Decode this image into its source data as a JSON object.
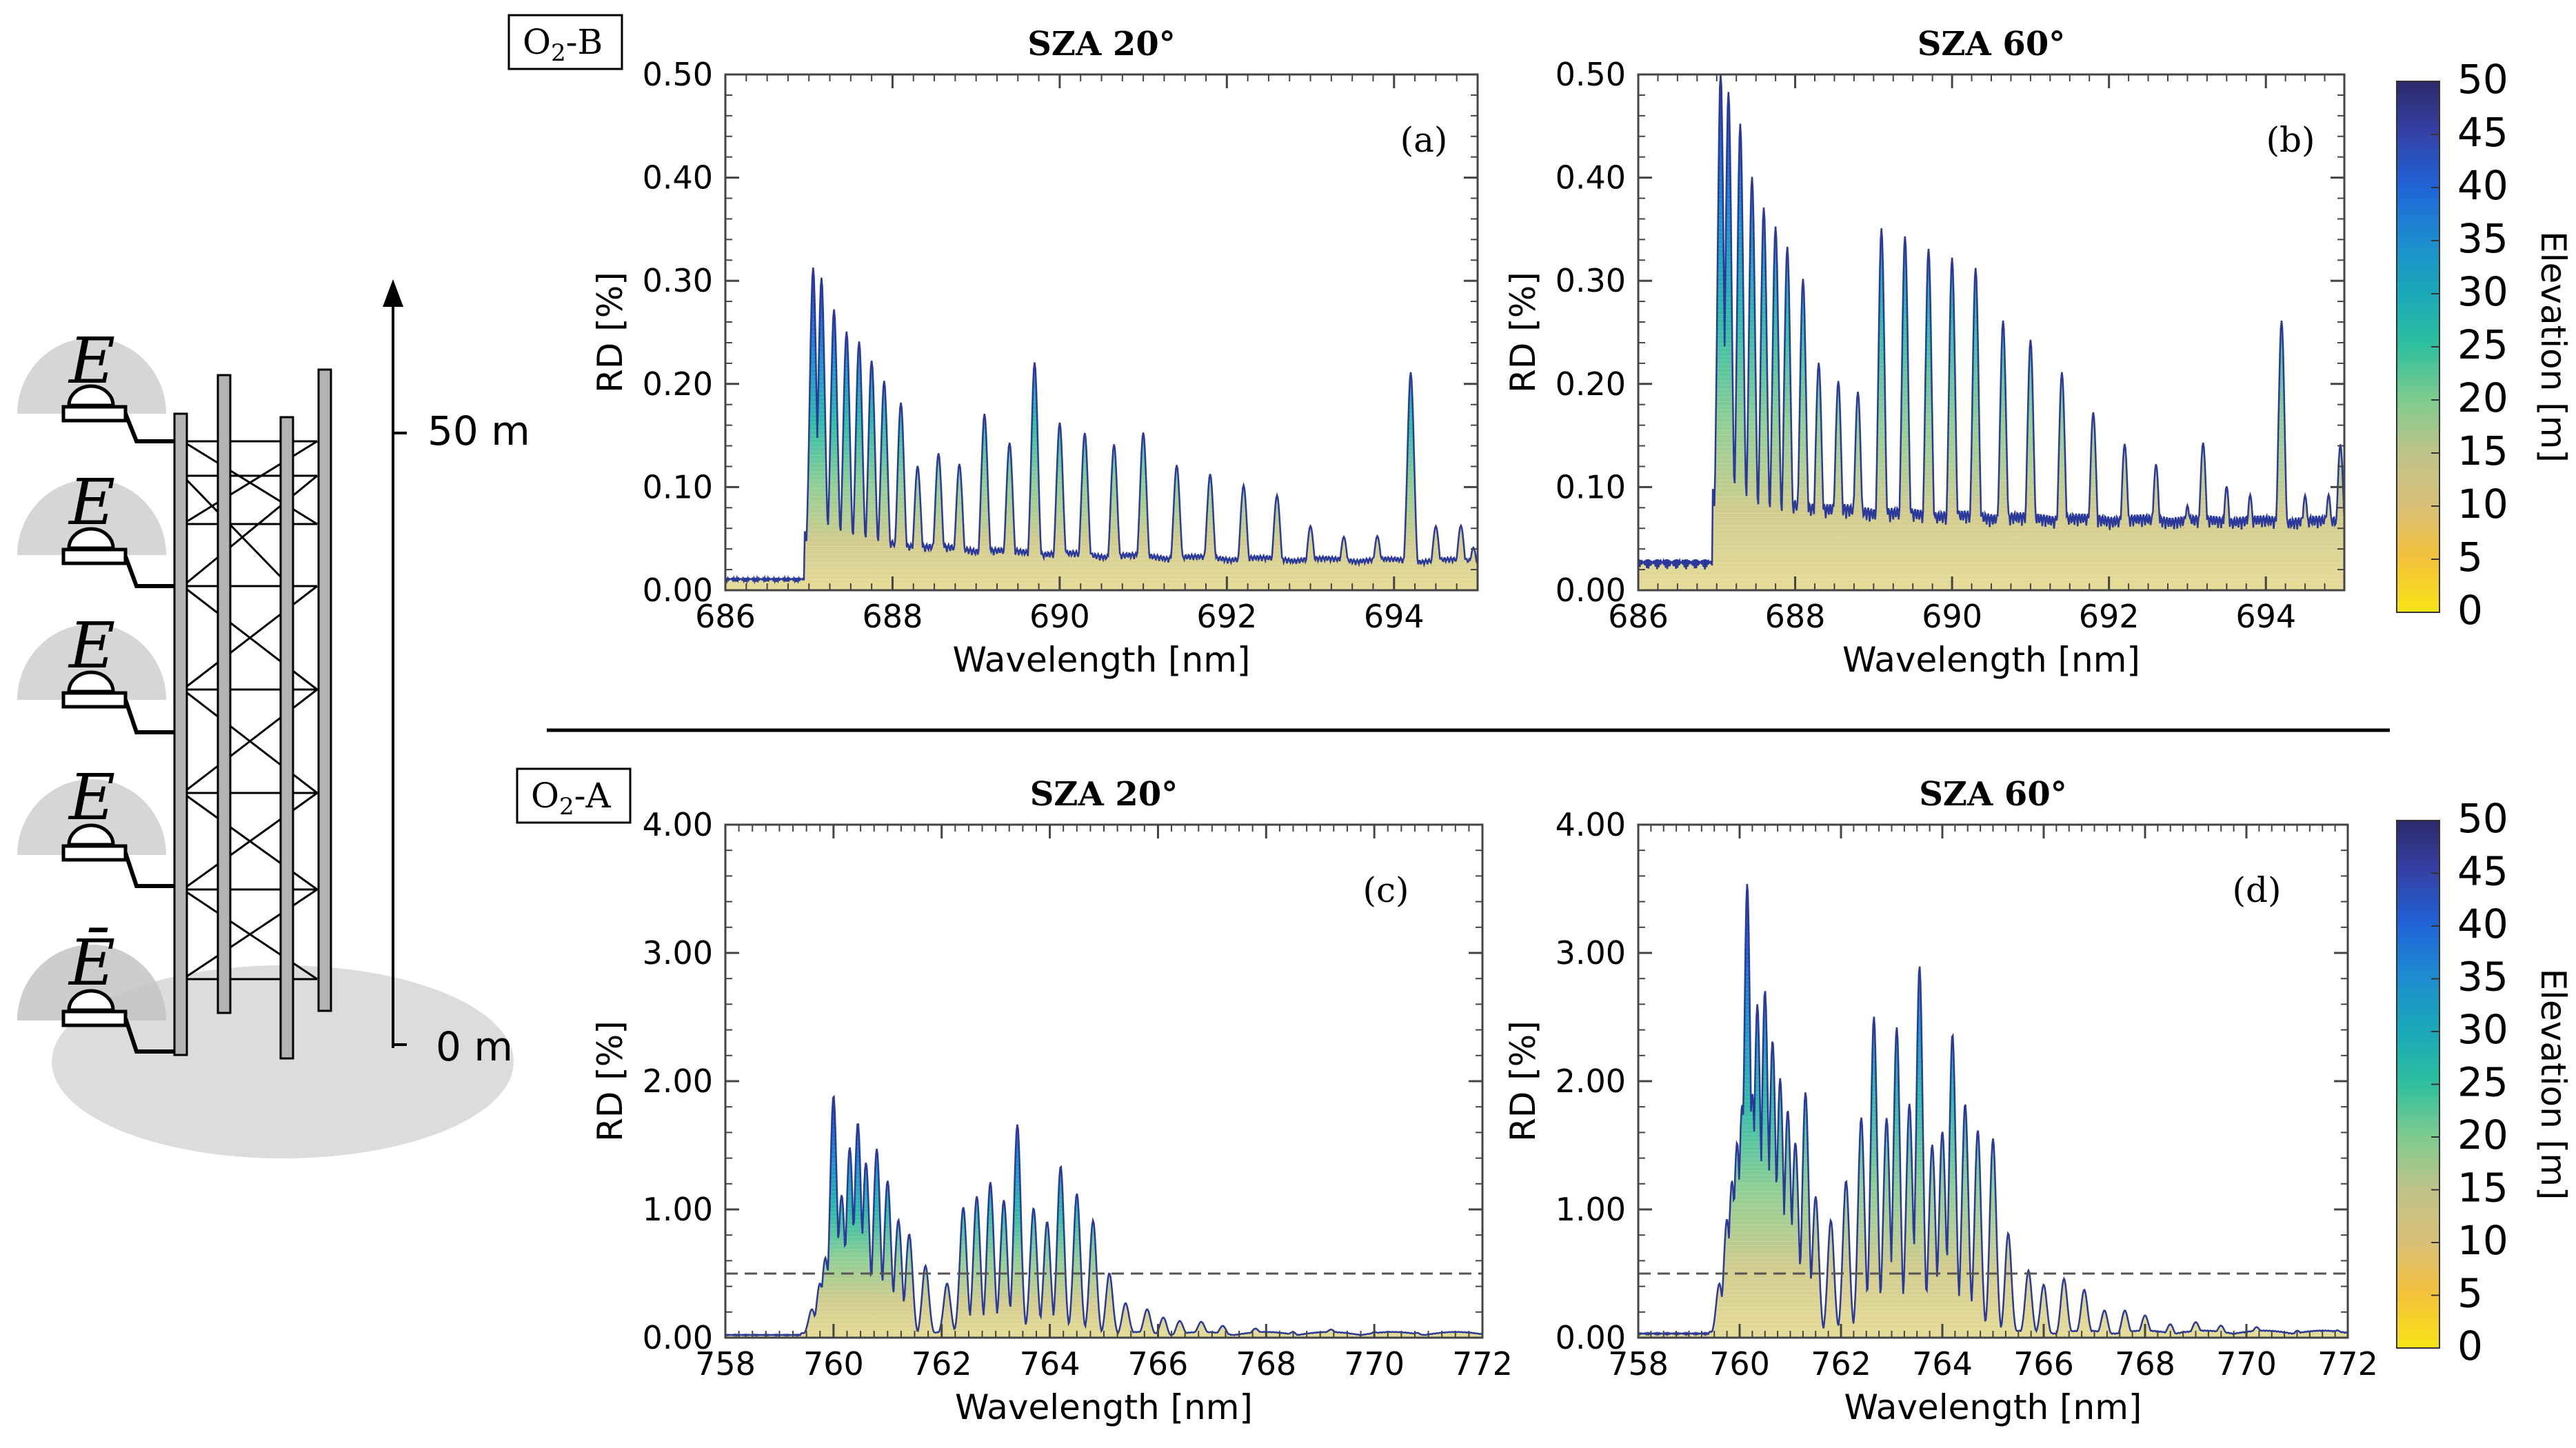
{
  "tower_diagram": {
    "instrument_symbol": "E",
    "instrument_symbol_bottom": "Ē",
    "height_top_label": "50 m",
    "height_bottom_label": "0 m"
  },
  "band_labels": {
    "top": {
      "main": "O",
      "sub": "2",
      "suffix": "-B"
    },
    "bottom": {
      "main": "O",
      "sub": "2",
      "suffix": "-A"
    }
  },
  "colors": {
    "elevation_colormap": [
      "#f7e416",
      "#f2c24a",
      "#d9c07a",
      "#b9c48c",
      "#6fcb92",
      "#1fb4a6",
      "#1c93c7",
      "#1f63d6",
      "#3a3f9f",
      "#2d2a6b"
    ],
    "dashed_line": "#555555",
    "frame": "#444444"
  },
  "chart_data": [
    {
      "id": "a",
      "type": "area",
      "band": "O2-B",
      "title": "SZA 20°",
      "panel_label": "(a)",
      "xlabel": "Wavelength [nm]",
      "ylabel": "RD [%]",
      "xlim": [
        686,
        695
      ],
      "ylim": [
        0.0,
        0.5
      ],
      "xticks": [
        "686",
        "688",
        "690",
        "692",
        "694"
      ],
      "xtick_values": [
        686,
        688,
        690,
        692,
        694
      ],
      "yticks": [
        "0.00",
        "0.10",
        "0.20",
        "0.30",
        "0.40",
        "0.50"
      ],
      "ytick_values": [
        0.0,
        0.1,
        0.2,
        0.3,
        0.4,
        0.5
      ],
      "baseline": 0.01,
      "edge": 686.95,
      "decay": 2.5,
      "peaks": [
        [
          687.05,
          0.31
        ],
        [
          687.15,
          0.3
        ],
        [
          687.3,
          0.27
        ],
        [
          687.45,
          0.25
        ],
        [
          687.6,
          0.24
        ],
        [
          687.75,
          0.22
        ],
        [
          687.9,
          0.2
        ],
        [
          688.1,
          0.18
        ],
        [
          688.3,
          0.12
        ],
        [
          688.55,
          0.13
        ],
        [
          688.8,
          0.12
        ],
        [
          689.1,
          0.17
        ],
        [
          689.4,
          0.14
        ],
        [
          689.7,
          0.22
        ],
        [
          690.0,
          0.16
        ],
        [
          690.3,
          0.15
        ],
        [
          690.65,
          0.14
        ],
        [
          691.0,
          0.15
        ],
        [
          691.4,
          0.12
        ],
        [
          691.8,
          0.11
        ],
        [
          692.2,
          0.1
        ],
        [
          692.6,
          0.09
        ],
        [
          693.0,
          0.06
        ],
        [
          693.4,
          0.05
        ],
        [
          693.8,
          0.05
        ],
        [
          694.2,
          0.21
        ],
        [
          694.5,
          0.06
        ],
        [
          694.8,
          0.06
        ],
        [
          694.95,
          0.04
        ]
      ]
    },
    {
      "id": "b",
      "type": "area",
      "band": "O2-B",
      "title": "SZA 60°",
      "panel_label": "(b)",
      "xlabel": "Wavelength [nm]",
      "ylabel": "RD [%]",
      "xlim": [
        686,
        695
      ],
      "ylim": [
        0.0,
        0.5
      ],
      "xticks": [
        "686",
        "688",
        "690",
        "692",
        "694"
      ],
      "xtick_values": [
        686,
        688,
        690,
        692,
        694
      ],
      "yticks": [
        "0.00",
        "0.10",
        "0.20",
        "0.30",
        "0.40",
        "0.50"
      ],
      "yticks_values": [
        0.0,
        0.1,
        0.2,
        0.3,
        0.4,
        0.5
      ],
      "ytick_values": [
        0.0,
        0.1,
        0.2,
        0.3,
        0.4,
        0.5
      ],
      "baseline": 0.025,
      "edge": 686.95,
      "decay": 2.0,
      "peaks": [
        [
          687.05,
          0.5
        ],
        [
          687.15,
          0.48
        ],
        [
          687.3,
          0.45
        ],
        [
          687.45,
          0.4
        ],
        [
          687.6,
          0.37
        ],
        [
          687.75,
          0.35
        ],
        [
          687.9,
          0.33
        ],
        [
          688.1,
          0.3
        ],
        [
          688.3,
          0.22
        ],
        [
          688.55,
          0.2
        ],
        [
          688.8,
          0.19
        ],
        [
          689.1,
          0.35
        ],
        [
          689.4,
          0.34
        ],
        [
          689.7,
          0.33
        ],
        [
          690.0,
          0.32
        ],
        [
          690.3,
          0.31
        ],
        [
          690.65,
          0.26
        ],
        [
          691.0,
          0.24
        ],
        [
          691.4,
          0.21
        ],
        [
          691.8,
          0.17
        ],
        [
          692.2,
          0.14
        ],
        [
          692.6,
          0.12
        ],
        [
          693.0,
          0.08
        ],
        [
          693.2,
          0.14
        ],
        [
          693.5,
          0.1
        ],
        [
          693.8,
          0.09
        ],
        [
          694.2,
          0.26
        ],
        [
          694.5,
          0.09
        ],
        [
          694.8,
          0.09
        ],
        [
          694.95,
          0.14
        ]
      ]
    },
    {
      "id": "c",
      "type": "area",
      "band": "O2-A",
      "title": "SZA 20°",
      "panel_label": "(c)",
      "xlabel": "Wavelength [nm]",
      "ylabel": "RD [%]",
      "xlim": [
        758,
        772
      ],
      "ylim": [
        0.0,
        4.0
      ],
      "xticks": [
        "758",
        "760",
        "762",
        "764",
        "766",
        "768",
        "770",
        "772"
      ],
      "xtick_values": [
        758,
        760,
        762,
        764,
        766,
        768,
        770,
        772
      ],
      "yticks": [
        "0.00",
        "1.00",
        "2.00",
        "3.00",
        "4.00"
      ],
      "ytick_values": [
        0.0,
        1.0,
        2.0,
        3.0,
        4.0
      ],
      "baseline": 0.02,
      "edge": 759.4,
      "decay": 0,
      "dashed_line_y": 0.5,
      "peaks": [
        [
          759.6,
          0.2
        ],
        [
          759.75,
          0.4
        ],
        [
          759.85,
          0.6
        ],
        [
          760.0,
          1.87
        ],
        [
          760.15,
          1.1
        ],
        [
          760.3,
          1.48
        ],
        [
          760.45,
          1.67
        ],
        [
          760.6,
          1.35
        ],
        [
          760.8,
          1.45
        ],
        [
          761.0,
          1.2
        ],
        [
          761.2,
          0.9
        ],
        [
          761.4,
          0.8
        ],
        [
          761.7,
          0.55
        ],
        [
          762.1,
          0.4
        ],
        [
          762.4,
          1.0
        ],
        [
          762.65,
          1.1
        ],
        [
          762.9,
          1.2
        ],
        [
          763.15,
          1.05
        ],
        [
          763.4,
          1.64
        ],
        [
          763.7,
          1.0
        ],
        [
          763.95,
          0.9
        ],
        [
          764.2,
          1.32
        ],
        [
          764.5,
          1.1
        ],
        [
          764.8,
          0.9
        ],
        [
          765.1,
          0.5
        ],
        [
          765.4,
          0.25
        ],
        [
          765.8,
          0.2
        ],
        [
          766.1,
          0.15
        ],
        [
          766.4,
          0.12
        ],
        [
          766.8,
          0.1
        ],
        [
          767.2,
          0.08
        ],
        [
          767.8,
          0.05
        ],
        [
          768.5,
          0.04
        ],
        [
          769.2,
          0.04
        ],
        [
          770.0,
          0.03
        ],
        [
          770.8,
          0.03
        ]
      ]
    },
    {
      "id": "d",
      "type": "area",
      "band": "O2-A",
      "title": "SZA 60°",
      "panel_label": "(d)",
      "xlabel": "Wavelength [nm]",
      "ylabel": "RD [%]",
      "xlim": [
        758,
        772
      ],
      "ylim": [
        0.0,
        4.0
      ],
      "xticks": [
        "758",
        "760",
        "762",
        "764",
        "766",
        "768",
        "770",
        "772"
      ],
      "xtick_values": [
        758,
        760,
        762,
        764,
        766,
        768,
        770,
        772
      ],
      "yticks": [
        "0.00",
        "1.00",
        "2.00",
        "3.00",
        "4.00"
      ],
      "ytick_values": [
        0.0,
        1.0,
        2.0,
        3.0,
        4.0
      ],
      "baseline": 0.03,
      "edge": 759.4,
      "decay": 0,
      "dashed_line_y": 0.5,
      "peaks": [
        [
          759.6,
          0.4
        ],
        [
          759.75,
          0.9
        ],
        [
          759.85,
          1.2
        ],
        [
          759.95,
          1.5
        ],
        [
          760.05,
          1.8
        ],
        [
          760.15,
          3.53
        ],
        [
          760.25,
          1.9
        ],
        [
          760.35,
          2.6
        ],
        [
          760.5,
          2.7
        ],
        [
          760.65,
          2.3
        ],
        [
          760.8,
          2.0
        ],
        [
          760.95,
          1.75
        ],
        [
          761.1,
          1.5
        ],
        [
          761.3,
          1.9
        ],
        [
          761.5,
          1.1
        ],
        [
          761.8,
          0.9
        ],
        [
          762.1,
          1.2
        ],
        [
          762.4,
          1.7
        ],
        [
          762.65,
          2.5
        ],
        [
          762.9,
          1.7
        ],
        [
          763.1,
          2.4
        ],
        [
          763.35,
          1.8
        ],
        [
          763.55,
          2.88
        ],
        [
          763.8,
          1.5
        ],
        [
          764.0,
          1.6
        ],
        [
          764.2,
          2.35
        ],
        [
          764.45,
          1.8
        ],
        [
          764.7,
          1.6
        ],
        [
          765.0,
          1.55
        ],
        [
          765.3,
          0.8
        ],
        [
          765.7,
          0.5
        ],
        [
          766.0,
          0.4
        ],
        [
          766.4,
          0.45
        ],
        [
          766.8,
          0.35
        ],
        [
          767.2,
          0.2
        ],
        [
          767.6,
          0.2
        ],
        [
          768.0,
          0.15
        ],
        [
          768.5,
          0.1
        ],
        [
          769.0,
          0.1
        ],
        [
          769.5,
          0.08
        ],
        [
          770.2,
          0.06
        ],
        [
          771.0,
          0.05
        ],
        [
          771.8,
          0.04
        ]
      ]
    }
  ],
  "colorbars": [
    {
      "label": "Elevation [m]",
      "ticks": [
        "0",
        "5",
        "10",
        "15",
        "20",
        "25",
        "30",
        "35",
        "40",
        "45",
        "50"
      ],
      "tick_values": [
        0,
        5,
        10,
        15,
        20,
        25,
        30,
        35,
        40,
        45,
        50
      ],
      "range": [
        0,
        50
      ]
    },
    {
      "label": "Elevation [m]",
      "ticks": [
        "0",
        "5",
        "10",
        "15",
        "20",
        "25",
        "30",
        "35",
        "40",
        "45",
        "50"
      ],
      "tick_values": [
        0,
        5,
        10,
        15,
        20,
        25,
        30,
        35,
        40,
        45,
        50
      ],
      "range": [
        0,
        50
      ]
    }
  ]
}
